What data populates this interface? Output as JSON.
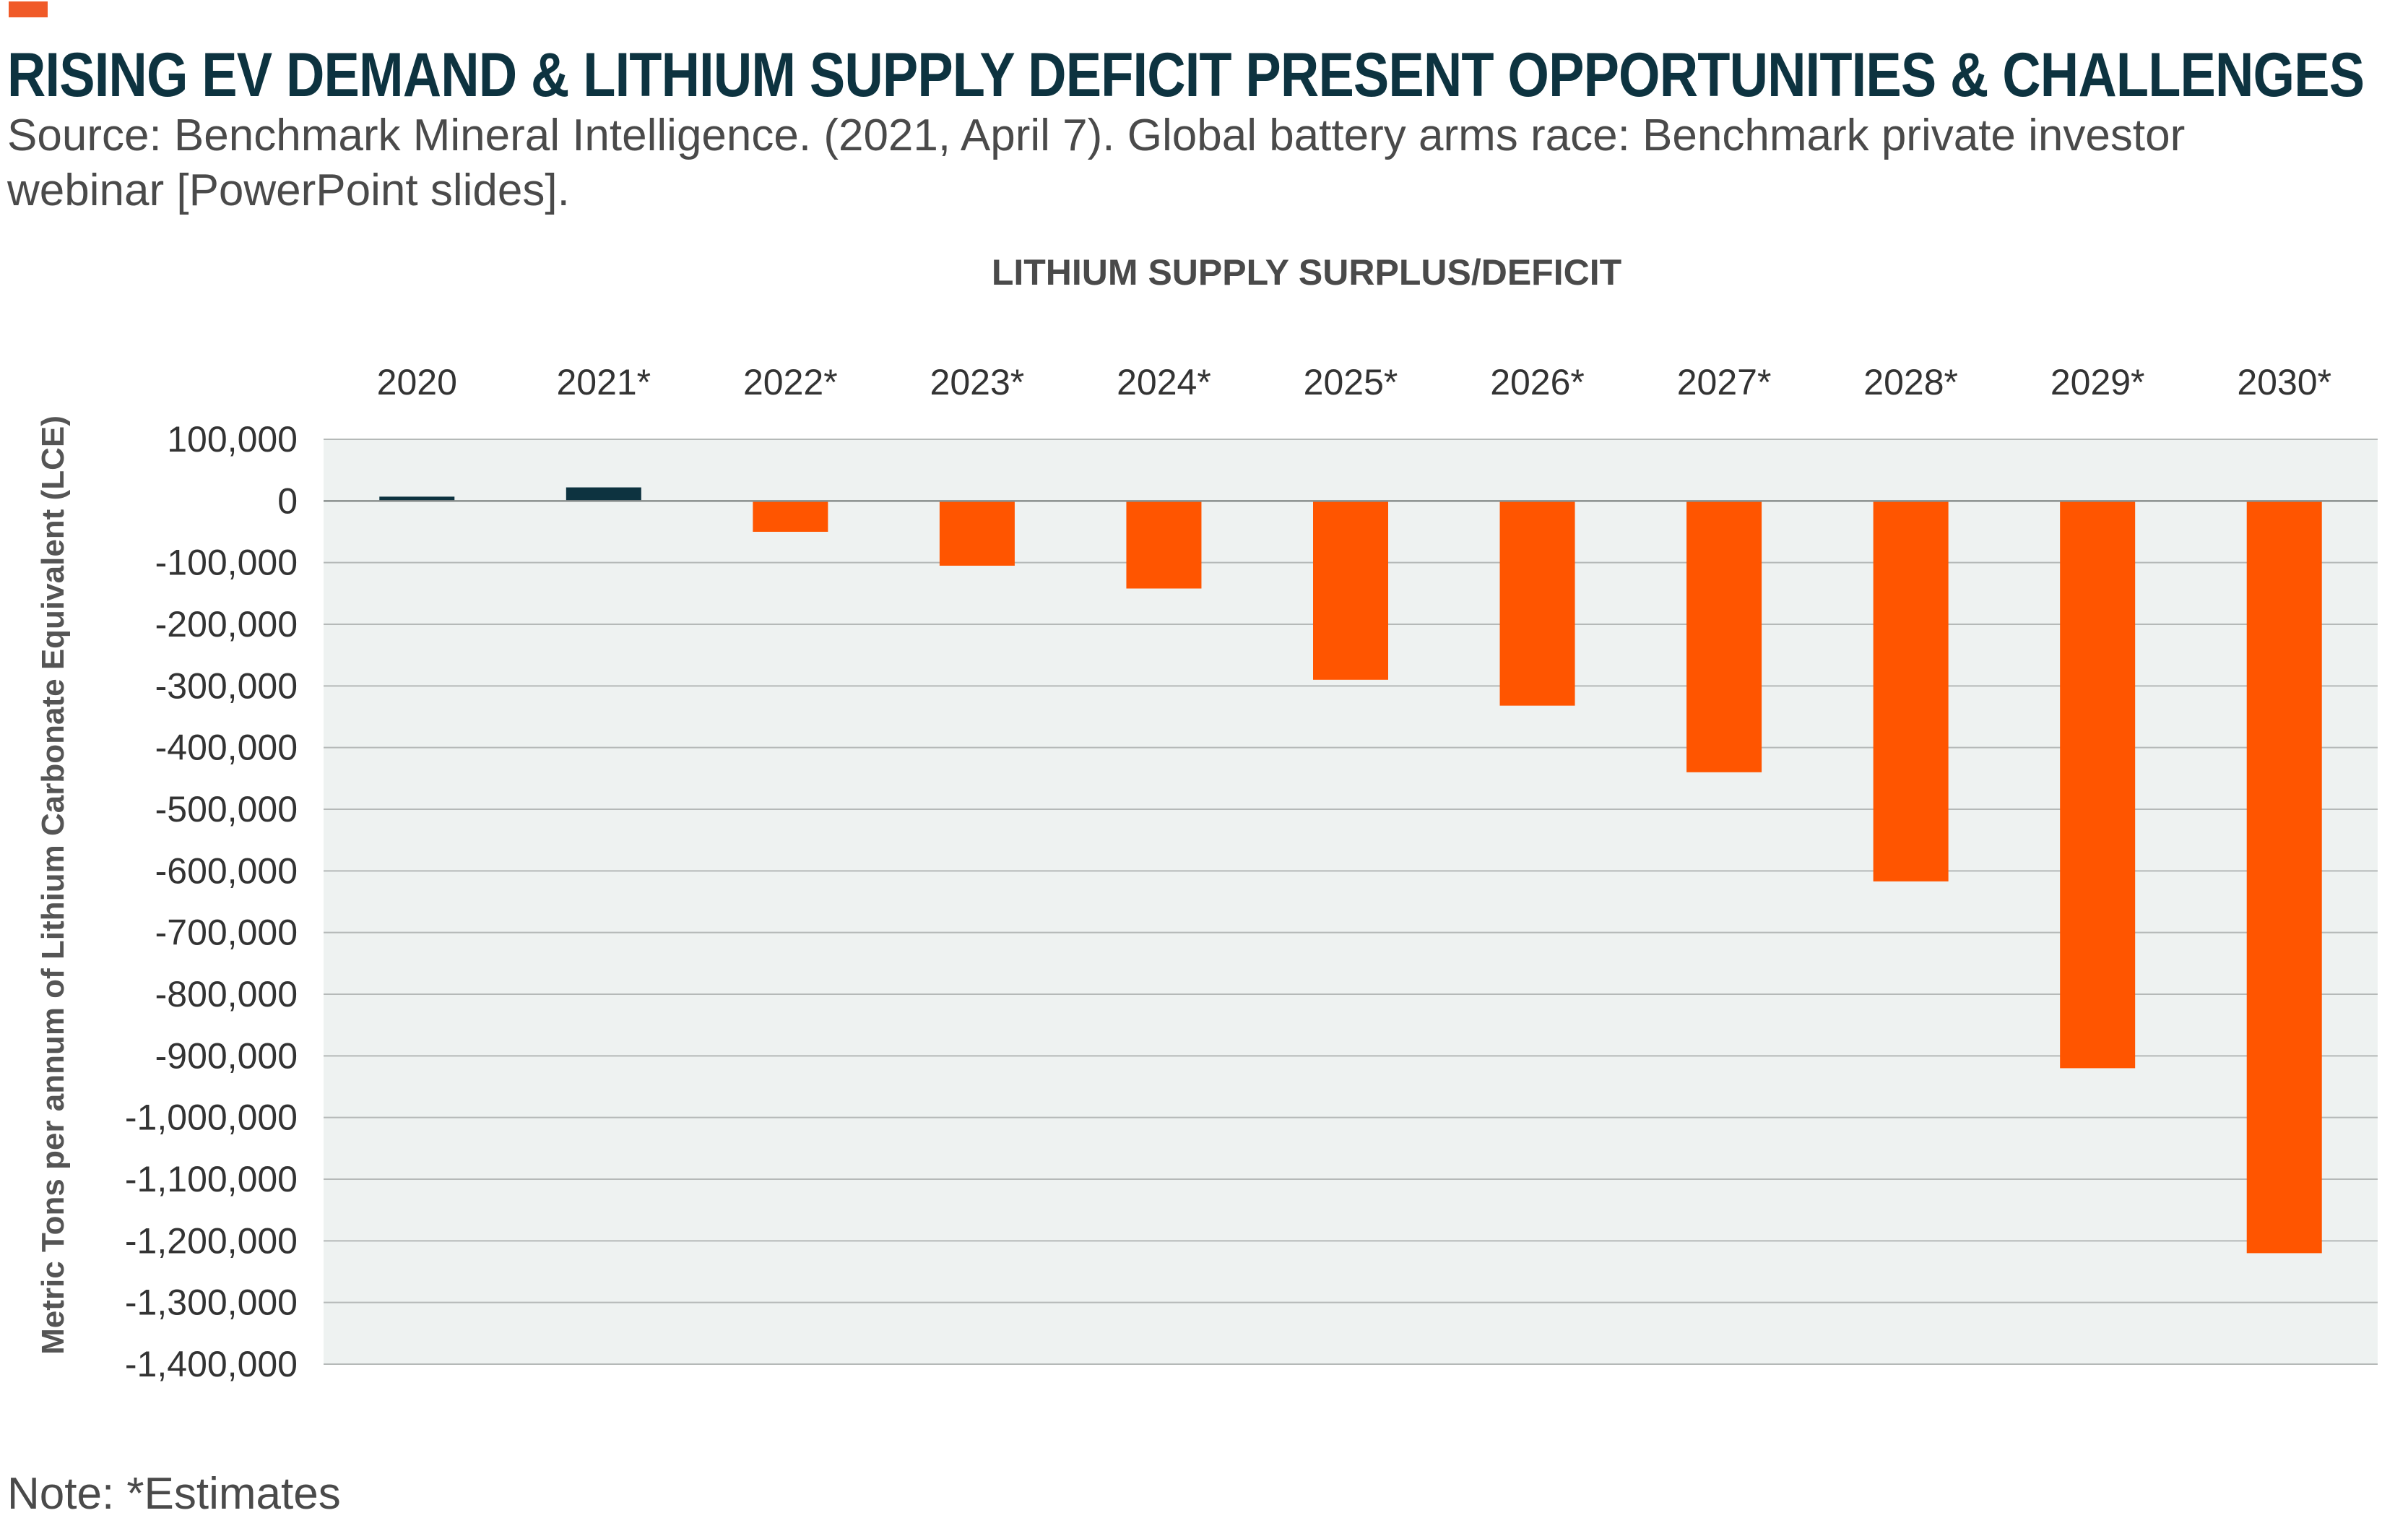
{
  "header": {
    "title": "RISING EV DEMAND & LITHIUM SUPPLY DEFICIT PRESENT OPPORTUNITIES & CHALLENGES",
    "source": "Source: Benchmark Mineral Intelligence. (2021, April 7). Global battery arms race: Benchmark private investor webinar [PowerPoint slides].",
    "accent_color": "#f05a28"
  },
  "footer": {
    "note": "Note: *Estimates"
  },
  "chart_data": {
    "type": "bar",
    "title": "LITHIUM SUPPLY SURPLUS/DEFICIT",
    "xlabel": "",
    "ylabel": "Metric Tons per annum of Lithium Carbonate Equivalent (LCE)",
    "categories": [
      "2020",
      "2021*",
      "2022*",
      "2023*",
      "2024*",
      "2025*",
      "2026*",
      "2027*",
      "2028*",
      "2029*",
      "2030*"
    ],
    "values": [
      7000,
      22000,
      -50000,
      -105000,
      -142000,
      -290000,
      -332000,
      -440000,
      -617000,
      -920000,
      -1220000
    ],
    "ylim": [
      -1400000,
      100000
    ],
    "yticks": [
      100000,
      0,
      -100000,
      -200000,
      -300000,
      -400000,
      -500000,
      -600000,
      -700000,
      -800000,
      -900000,
      -1000000,
      -1100000,
      -1200000,
      -1300000,
      -1400000
    ],
    "ytick_labels": [
      "100,000",
      "0",
      "-100,000",
      "-200,000",
      "-300,000",
      "-400,000",
      "-500,000",
      "-600,000",
      "-700,000",
      "-800,000",
      "-900,000",
      "-1,000,000",
      "-1,100,000",
      "-1,200,000",
      "-1,300,000",
      "-1,400,000"
    ],
    "category_axis_position": "top",
    "grid": true,
    "legend": "none",
    "colors": {
      "surplus": "#0d3340",
      "deficit": "#ff5500",
      "plot_background": "#eef2f1",
      "gridline": "#b5b9b8"
    }
  }
}
